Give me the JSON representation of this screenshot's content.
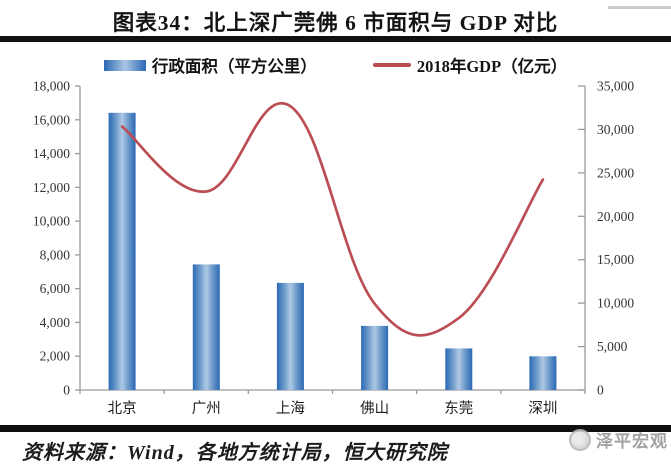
{
  "title": "图表34：北上深广莞佛 6 市面积与 GDP 对比",
  "source": "资料来源：Wind，各地方统计局，恒大研究院",
  "watermark": "泽平宏观",
  "colors": {
    "bar_edge": "#2a69b4",
    "bar_mid": "#aac5e3",
    "line": "#bb4e54",
    "axis": "#9b9b9b",
    "tick_text": "#333333",
    "category_text": "#1f1f1f",
    "rule": "#101010",
    "watermark": "#9a9a9a"
  },
  "chart_data": {
    "type": "bar",
    "subtype": "bar+line combo, dual y-axes",
    "categories": [
      "北京",
      "广州",
      "上海",
      "佛山",
      "东莞",
      "深圳"
    ],
    "series": [
      {
        "name": "行政面积（平方公里）",
        "type": "bar",
        "axis": "left",
        "values": [
          16411,
          7434,
          6340,
          3798,
          2465,
          1997
        ]
      },
      {
        "name": "2018年GDP（亿元）",
        "type": "line",
        "axis": "right",
        "values": [
          30320,
          22859,
          32680,
          9936,
          8279,
          24222
        ]
      }
    ],
    "left_axis": {
      "min": 0,
      "max": 18000,
      "step": 2000,
      "tick_labels": [
        "0",
        "2,000",
        "4,000",
        "6,000",
        "8,000",
        "10,000",
        "12,000",
        "14,000",
        "16,000",
        "18,000"
      ]
    },
    "right_axis": {
      "min": 0,
      "max": 35000,
      "step": 5000,
      "tick_labels": [
        "0",
        "5,000",
        "10,000",
        "15,000",
        "20,000",
        "25,000",
        "30,000",
        "35,000"
      ]
    },
    "grid": false,
    "legend_position": "top",
    "line_smooth": true
  }
}
